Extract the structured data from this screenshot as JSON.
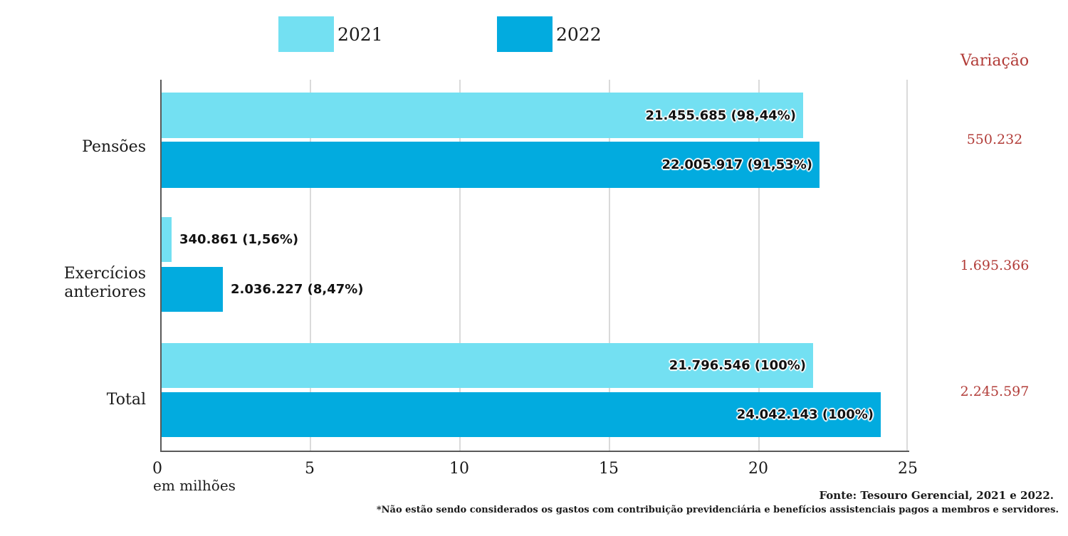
{
  "chart_data": {
    "type": "bar",
    "orientation": "horizontal",
    "unit_note": "em milhões",
    "x_axis": {
      "ticks": [
        "0",
        "5",
        "10",
        "15",
        "20",
        "25"
      ],
      "range": [
        0,
        25
      ],
      "gridlines": true
    },
    "legend_position": "top",
    "categories": [
      "Pensões",
      "Exercícios anteriores",
      "Total"
    ],
    "series": [
      {
        "name": "2021",
        "color": "#73E0F2",
        "values_millions": [
          21.455685,
          0.340861,
          21.796546
        ],
        "bar_labels": [
          "21.455.685 (98,44%)",
          "340.861 (1,56%)",
          "21.796.546 (100%)"
        ]
      },
      {
        "name": "2022",
        "color": "#02ABDF",
        "values_millions": [
          22.005917,
          2.036227,
          24.042143
        ],
        "bar_labels": [
          "22.005.917 (91,53%)",
          "2.036.227 (8,47%)",
          "24.042.143 (100%)"
        ]
      }
    ],
    "variation_column": {
      "title": "Variação",
      "color": "#B23D39",
      "values": [
        "550.232",
        "1.695.366",
        "2.245.597"
      ]
    }
  },
  "footer": {
    "source": "Fonte: Tesouro Gerencial, 2021 e 2022.",
    "note": "*Não estão sendo considerados os gastos com contribuição previdenciária e benefícios assistenciais pagos a membros e servidores."
  }
}
